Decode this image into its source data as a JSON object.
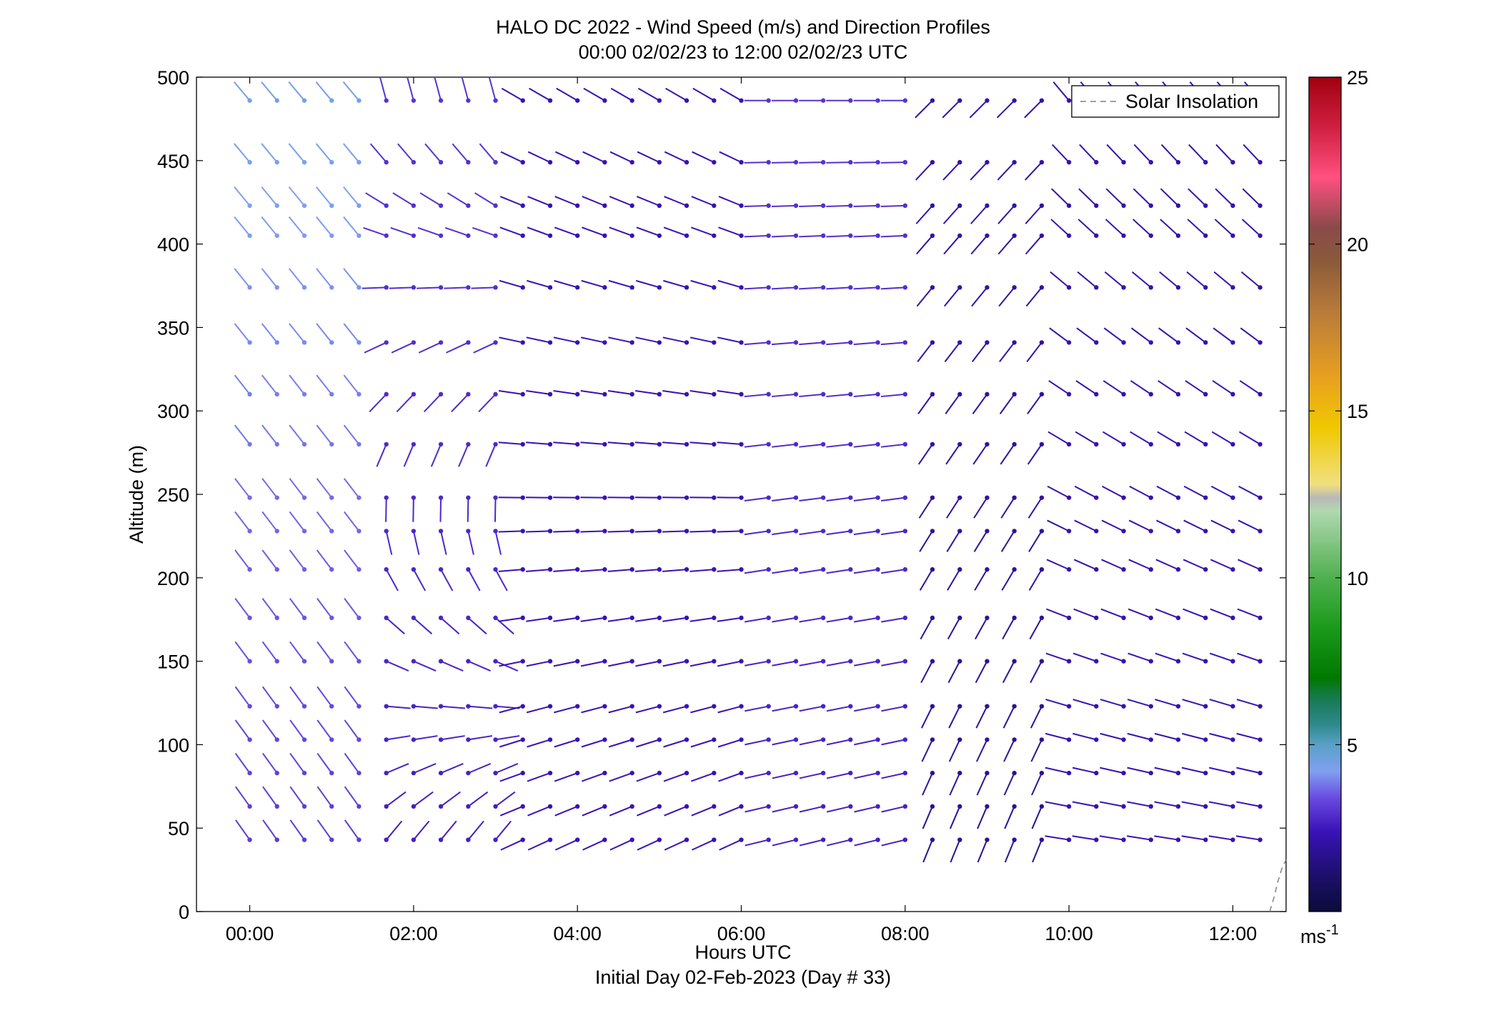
{
  "chart_data": {
    "type": "wind-barb-profile",
    "title": "HALO DC 2022 - Wind Speed (m/s) and Direction Profiles",
    "subtitle": "00:00 02/02/23 to 12:00 02/02/23  UTC",
    "xlabel": "Hours UTC",
    "xlabel2": "Initial Day 02-Feb-2023 (Day # 33)",
    "ylabel": "Altitude (m)",
    "xlim": [
      -0.65,
      12.65
    ],
    "ylim": [
      0,
      500
    ],
    "xticks": [
      0,
      2,
      4,
      6,
      8,
      10,
      12
    ],
    "xtick_labels": [
      "00:00",
      "02:00",
      "04:00",
      "06:00",
      "08:00",
      "10:00",
      "12:00"
    ],
    "yticks": [
      0,
      50,
      100,
      150,
      200,
      250,
      300,
      350,
      400,
      450,
      500
    ],
    "ytick_labels": [
      "0",
      "50",
      "100",
      "150",
      "200",
      "250",
      "300",
      "350",
      "400",
      "450",
      "500"
    ],
    "legend": {
      "label": "Solar Insolation",
      "placement": "top-right",
      "line_style": "dashed",
      "color": "#808080"
    },
    "solar_insolation": {
      "x": [
        12.45,
        12.5,
        12.55,
        12.6,
        12.65
      ],
      "y": [
        0,
        8,
        18,
        26,
        31
      ]
    },
    "colorbar": {
      "label": "ms",
      "label_exponent": "-1",
      "range": [
        0,
        25
      ],
      "ticks": [
        5,
        10,
        15,
        20,
        25
      ],
      "tick_labels": [
        "5",
        "10",
        "15",
        "20",
        "25"
      ],
      "stops": [
        {
          "v": 0,
          "c": "#0b0b3a"
        },
        {
          "v": 1.2,
          "c": "#1e1070"
        },
        {
          "v": 2.4,
          "c": "#3a12b8"
        },
        {
          "v": 3.4,
          "c": "#6a4ae0"
        },
        {
          "v": 4.2,
          "c": "#80a0f0"
        },
        {
          "v": 5.0,
          "c": "#5aa0c8"
        },
        {
          "v": 5.6,
          "c": "#2e8a8a"
        },
        {
          "v": 6.3,
          "c": "#1a7a5a"
        },
        {
          "v": 7.0,
          "c": "#007800"
        },
        {
          "v": 8.5,
          "c": "#1a9a1a"
        },
        {
          "v": 10.0,
          "c": "#50b050"
        },
        {
          "v": 12.0,
          "c": "#b0d8b0"
        },
        {
          "v": 12.4,
          "c": "#b8b8b8"
        },
        {
          "v": 12.8,
          "c": "#f0e080"
        },
        {
          "v": 14.5,
          "c": "#f0c800"
        },
        {
          "v": 16.0,
          "c": "#e8a020"
        },
        {
          "v": 18.0,
          "c": "#b87a3a"
        },
        {
          "v": 19.5,
          "c": "#8a5a3a"
        },
        {
          "v": 20.5,
          "c": "#8a4a4a"
        },
        {
          "v": 22.0,
          "c": "#ff5080"
        },
        {
          "v": 23.5,
          "c": "#d02040"
        },
        {
          "v": 25.0,
          "c": "#a00010"
        }
      ]
    },
    "altitudes": [
      43,
      63,
      83,
      103,
      123,
      150,
      176,
      205,
      228,
      248,
      280,
      310,
      341,
      374,
      405,
      423,
      449,
      486
    ],
    "times": [
      0.0,
      0.333,
      0.667,
      1.0,
      1.333,
      1.667,
      2.0,
      2.333,
      2.667,
      3.0,
      3.333,
      3.667,
      4.0,
      4.333,
      4.667,
      5.0,
      5.333,
      5.667,
      6.0,
      6.333,
      6.667,
      7.0,
      7.333,
      7.667,
      8.0,
      8.333,
      8.667,
      9.0,
      9.333,
      9.667,
      10.0,
      10.333,
      10.667,
      11.0,
      11.333,
      11.667,
      12.0,
      12.333
    ],
    "direction_regimes": [
      {
        "t_end": 1.5,
        "dir_low": 325,
        "dir_high": 320,
        "spd_low": 3.0,
        "spd_high": 4.4
      },
      {
        "t_end": 3.0,
        "dir_low": 10,
        "dir_high": 345,
        "spd_low": 2.6,
        "spd_high": 3.0
      },
      {
        "t_end": 6.0,
        "dir_low": 240,
        "dir_high": 300,
        "spd_low": 2.4,
        "spd_high": 2.3
      },
      {
        "t_end": 8.0,
        "dir_low": 255,
        "dir_high": 270,
        "spd_low": 2.6,
        "spd_high": 3.0
      },
      {
        "t_end": 9.8,
        "dir_low": 200,
        "dir_high": 225,
        "spd_low": 1.8,
        "spd_high": 2.2
      },
      {
        "t_end": 12.6,
        "dir_low": 275,
        "dir_high": 320,
        "spd_low": 2.3,
        "spd_high": 2.2
      }
    ]
  }
}
